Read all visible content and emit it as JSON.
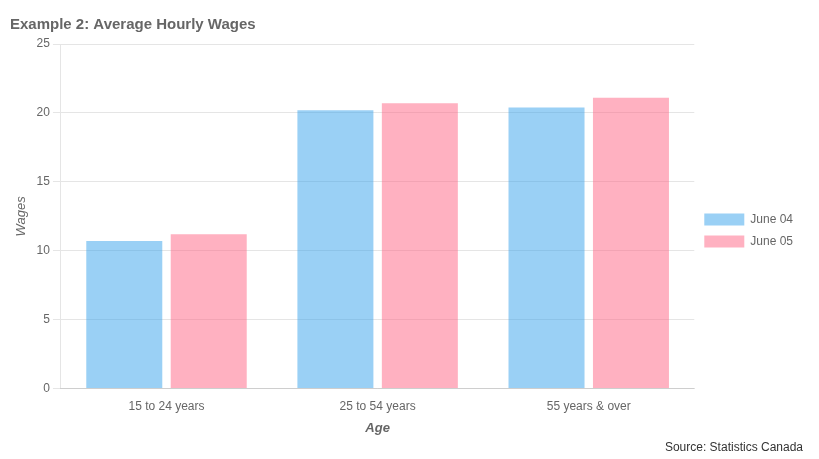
{
  "chart_data": {
    "type": "bar",
    "title": "Example 2: Average Hourly Wages",
    "categories": [
      "15 to 24 years",
      "25 to 54 years",
      "55 years & over"
    ],
    "series": [
      {
        "name": "June 04",
        "values": [
          10.7,
          20.2,
          20.4
        ]
      },
      {
        "name": "June 05",
        "values": [
          11.2,
          20.7,
          21.1
        ]
      }
    ],
    "xlabel": "Age",
    "ylabel": "Wages",
    "ylim": [
      0,
      25
    ],
    "yticks": [
      0,
      5,
      10,
      15,
      20,
      25
    ],
    "grid": true,
    "legend": "right",
    "annotations": [
      "Source: Statistics Canada"
    ]
  }
}
